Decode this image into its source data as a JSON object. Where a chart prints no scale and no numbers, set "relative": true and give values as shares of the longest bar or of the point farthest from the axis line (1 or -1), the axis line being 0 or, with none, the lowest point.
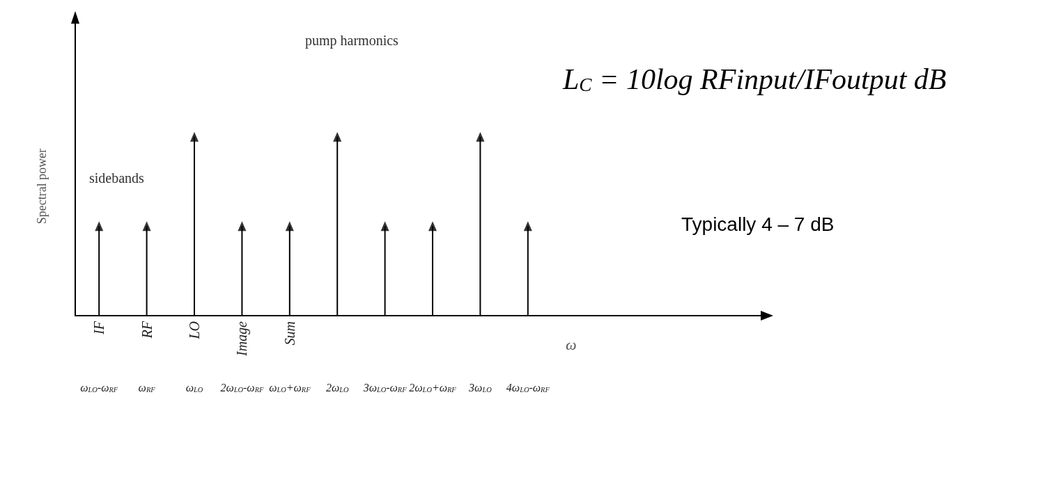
{
  "chart_data": {
    "type": "lollipop",
    "relative": true,
    "marker": "triangle",
    "color": "#000000",
    "xlabel": "ω",
    "ylabel": "Spectral power",
    "categories": [
      "ω$_{LO}$-ω$_{RF}$",
      "ω$_{RF}$",
      "ω$_{LO}$",
      "2ω$_{LO}$-ω$_{RF}$",
      "ω$_{LO}$+ω$_{RF}$",
      "2ω$_{LO}$",
      "3ω$_{LO}$-ω$_{RF}$",
      "2ω$_{LO}$+ω$_{RF}$",
      "3ω$_{LO}$",
      "4ω$_{LO}$-ω$_{RF}$"
    ],
    "values": [
      0.5,
      0.5,
      1,
      0.5,
      0.5,
      1,
      0.5,
      0.5,
      1,
      0.5
    ],
    "annotations": [
      "pump harmonics",
      "sidebands",
      "L$_{C}$ = 10log RFinput/IFoutput dB",
      "Typically 4 – 7 dB",
      "IF",
      "RF",
      "LO",
      "Image",
      "Sum"
    ]
  }
}
